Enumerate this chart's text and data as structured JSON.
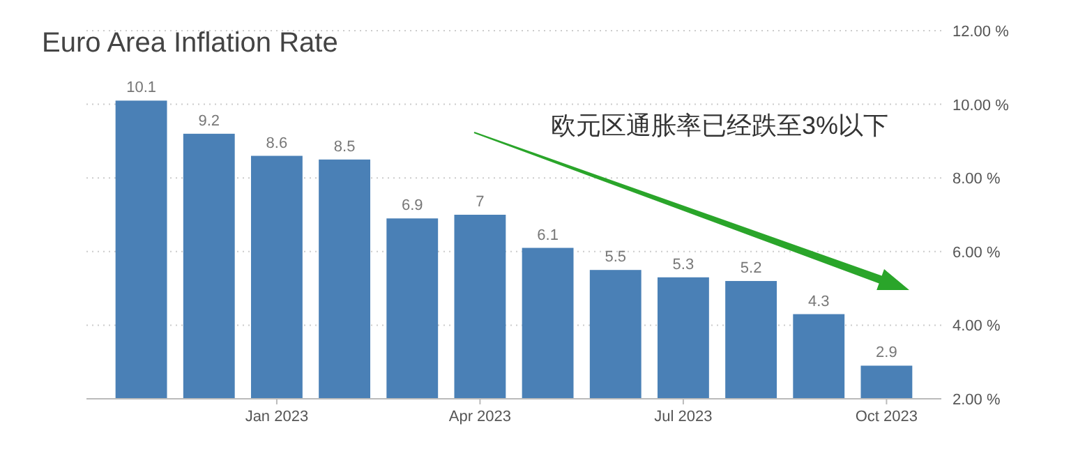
{
  "chart_data": {
    "type": "bar",
    "title": "Euro Area Inflation Rate",
    "categories": [
      null,
      null,
      "Jan 2023",
      null,
      null,
      "Apr 2023",
      null,
      null,
      "Jul 2023",
      null,
      null,
      "Oct 2023"
    ],
    "values": [
      10.1,
      9.2,
      8.6,
      8.5,
      6.9,
      7,
      6.1,
      5.5,
      5.3,
      5.2,
      4.3,
      2.9
    ],
    "color": "#4a80b6",
    "ylim": [
      2,
      12
    ],
    "yticks": [
      {
        "value": 2,
        "label": "2.00 %"
      },
      {
        "value": 4,
        "label": "4.00 %"
      },
      {
        "value": 6,
        "label": "6.00 %"
      },
      {
        "value": 8,
        "label": "8.00 %"
      },
      {
        "value": 10,
        "label": "10.00 %"
      },
      {
        "value": 12,
        "label": "12.00 %"
      }
    ],
    "grid": "y",
    "data_labels": true,
    "annotations": [
      "欧元区通胀率已经跌至3%以下"
    ]
  }
}
